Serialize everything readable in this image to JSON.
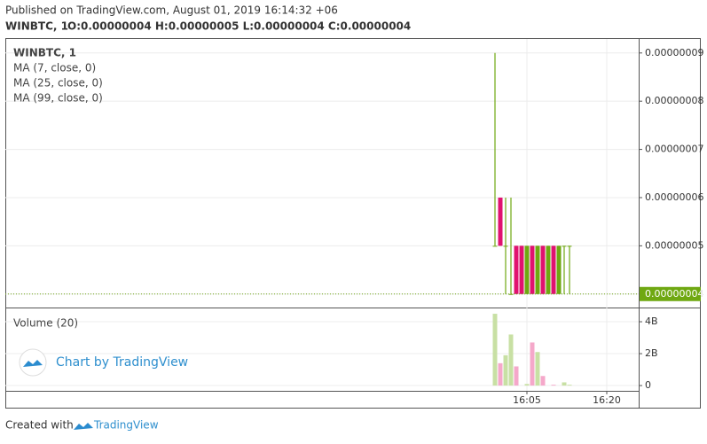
{
  "chart_data": {
    "type": "candlestick",
    "published": "Published on TradingView.com, August 01, 2019 16:14:32 +06",
    "title": "WINBTC, 1",
    "ohlc_summary": "O:0.00000004 H:0.00000005 L:0.00000004 C:0.00000004",
    "indicators": [
      "MA (7, close, 0)",
      "MA (25, close, 0)",
      "MA (99, close, 0)"
    ],
    "x": [
      "15:59",
      "16:00",
      "16:01",
      "16:02",
      "16:03",
      "16:04",
      "16:05",
      "16:06",
      "16:07",
      "16:08",
      "16:09",
      "16:10",
      "16:11",
      "16:12",
      "16:13"
    ],
    "open": [
      5e-08,
      6e-08,
      5e-08,
      4e-08,
      5e-08,
      5e-08,
      4e-08,
      5e-08,
      4e-08,
      5e-08,
      4e-08,
      5e-08,
      4e-08,
      5e-08,
      5e-08
    ],
    "high": [
      9e-08,
      6e-08,
      6e-08,
      6e-08,
      5e-08,
      5e-08,
      5e-08,
      5e-08,
      5e-08,
      5e-08,
      5e-08,
      5e-08,
      5e-08,
      5e-08,
      5e-08
    ],
    "low": [
      5e-08,
      5e-08,
      4e-08,
      4e-08,
      4e-08,
      4e-08,
      4e-08,
      4e-08,
      4e-08,
      4e-08,
      4e-08,
      4e-08,
      4e-08,
      4e-08,
      4e-08
    ],
    "close": [
      5e-08,
      5e-08,
      5e-08,
      4e-08,
      4e-08,
      4e-08,
      5e-08,
      4e-08,
      5e-08,
      4e-08,
      5e-08,
      4e-08,
      5e-08,
      5e-08,
      5e-08
    ],
    "up_color": "#6fa812",
    "down_color": "#e0126f",
    "xlim": [
      "14:27",
      "16:26"
    ],
    "xticks": [
      "16:05",
      "16:20"
    ],
    "ylim": [
      3.72e-08,
      9.29e-08
    ],
    "yticks": [
      {
        "value": 4e-08,
        "label": "0.00000004"
      },
      {
        "value": 5e-08,
        "label": "0.00000005"
      },
      {
        "value": 6e-08,
        "label": "0.00000006"
      },
      {
        "value": 7e-08,
        "label": "0.00000007"
      },
      {
        "value": 8e-08,
        "label": "0.00000008"
      },
      {
        "value": 9e-08,
        "label": "0.00000009"
      }
    ],
    "last_price": {
      "value": 4e-08,
      "label": "0.00000004"
    },
    "grid": true,
    "volume": {
      "name": "Volume (20)",
      "up_color": "#c8e0a4",
      "down_color": "#f5a8ca",
      "values": [
        4500000000,
        1400000000,
        1900000000,
        3200000000,
        1200000000,
        0,
        100000000,
        2700000000,
        2100000000,
        600000000,
        0,
        50000000,
        0,
        200000000,
        50000000
      ],
      "ylim": [
        -330000000,
        4780000000
      ],
      "yticks": [
        0,
        {
          "value": 2000000000,
          "label": "2B"
        },
        {
          "value": 4000000000,
          "label": "4B"
        }
      ]
    },
    "watermark": "Chart by TradingView",
    "footer": {
      "prefix": "Created with",
      "brand": "TradingView"
    }
  }
}
